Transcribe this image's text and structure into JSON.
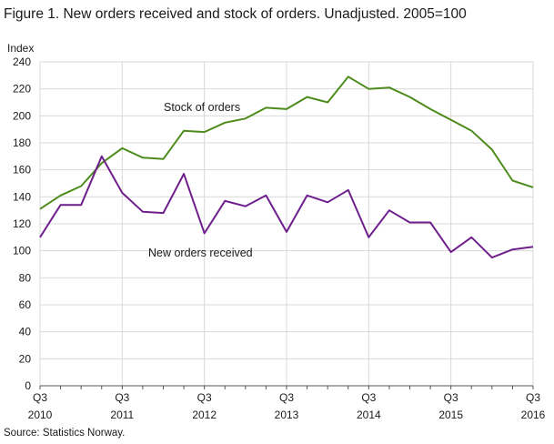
{
  "chart_data": {
    "type": "line",
    "title": "Figure 1. New orders received and stock of orders. Unadjusted. 2005=100",
    "ylabel": "Index",
    "xlabel": "",
    "ylim": [
      0,
      240
    ],
    "yticks": [
      0,
      20,
      40,
      60,
      80,
      100,
      120,
      140,
      160,
      180,
      200,
      220,
      240
    ],
    "grid": true,
    "legend": "inline",
    "x": [
      "2010Q3",
      "2010Q4",
      "2011Q1",
      "2011Q2",
      "2011Q3",
      "2011Q4",
      "2012Q1",
      "2012Q2",
      "2012Q3",
      "2012Q4",
      "2013Q1",
      "2013Q2",
      "2013Q3",
      "2013Q4",
      "2014Q1",
      "2014Q2",
      "2014Q3",
      "2014Q4",
      "2015Q1",
      "2015Q2",
      "2015Q3",
      "2015Q4",
      "2016Q1",
      "2016Q2",
      "2016Q3"
    ],
    "xtick_labels": [
      {
        "quarter": "Q3",
        "year": "2010"
      },
      {
        "quarter": "Q3",
        "year": "2011"
      },
      {
        "quarter": "Q3",
        "year": "2012"
      },
      {
        "quarter": "Q3",
        "year": "2013"
      },
      {
        "quarter": "Q3",
        "year": "2014"
      },
      {
        "quarter": "Q3",
        "year": "2015"
      },
      {
        "quarter": "Q3",
        "year": "2016"
      }
    ],
    "series": [
      {
        "name": "Stock of orders",
        "color": "#4d8b1c",
        "values": [
          131,
          141,
          148,
          165,
          176,
          169,
          168,
          189,
          188,
          195,
          198,
          206,
          205,
          214,
          210,
          229,
          220,
          221,
          214,
          205,
          197,
          189,
          175,
          152,
          147
        ]
      },
      {
        "name": "New orders received",
        "color": "#6e1f8c",
        "values": [
          110,
          134,
          134,
          170,
          143,
          129,
          128,
          157,
          113,
          137,
          133,
          141,
          114,
          141,
          136,
          145,
          110,
          130,
          121,
          121,
          99,
          110,
          95,
          101,
          103
        ]
      }
    ],
    "source": "Source: Statistics Norway.",
    "grid_color": "#d9d9d9",
    "axis_color": "#555555"
  }
}
